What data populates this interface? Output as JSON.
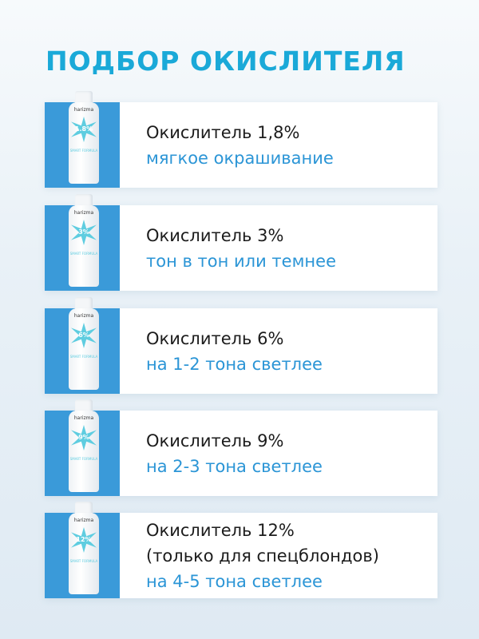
{
  "title": "ПОДБОР ОКИСЛИТЕЛЯ",
  "brand": "harizma",
  "formula_label": "SMART FORMULA",
  "colors": {
    "title": "#1aa9d8",
    "panel": "#3a9ad9",
    "subtitle": "#2b95d6"
  },
  "items": [
    {
      "percent": "1.8%",
      "name": "Окислитель 1,8%",
      "lines": [
        "мягкое окрашивание"
      ]
    },
    {
      "percent": "3%",
      "name": "Окислитель 3%",
      "lines": [
        "тон в тон или темнее"
      ]
    },
    {
      "percent": "6%",
      "name": "Окислитель 6%",
      "lines": [
        "на 1-2 тона светлее"
      ]
    },
    {
      "percent": "9%",
      "name": "Окислитель 9%",
      "lines": [
        "на 2-3 тона светлее"
      ]
    },
    {
      "percent": "12%",
      "name": "Окислитель 12%",
      "note": "(только для спецблондов)",
      "lines": [
        "на 4-5 тона светлее"
      ]
    }
  ]
}
